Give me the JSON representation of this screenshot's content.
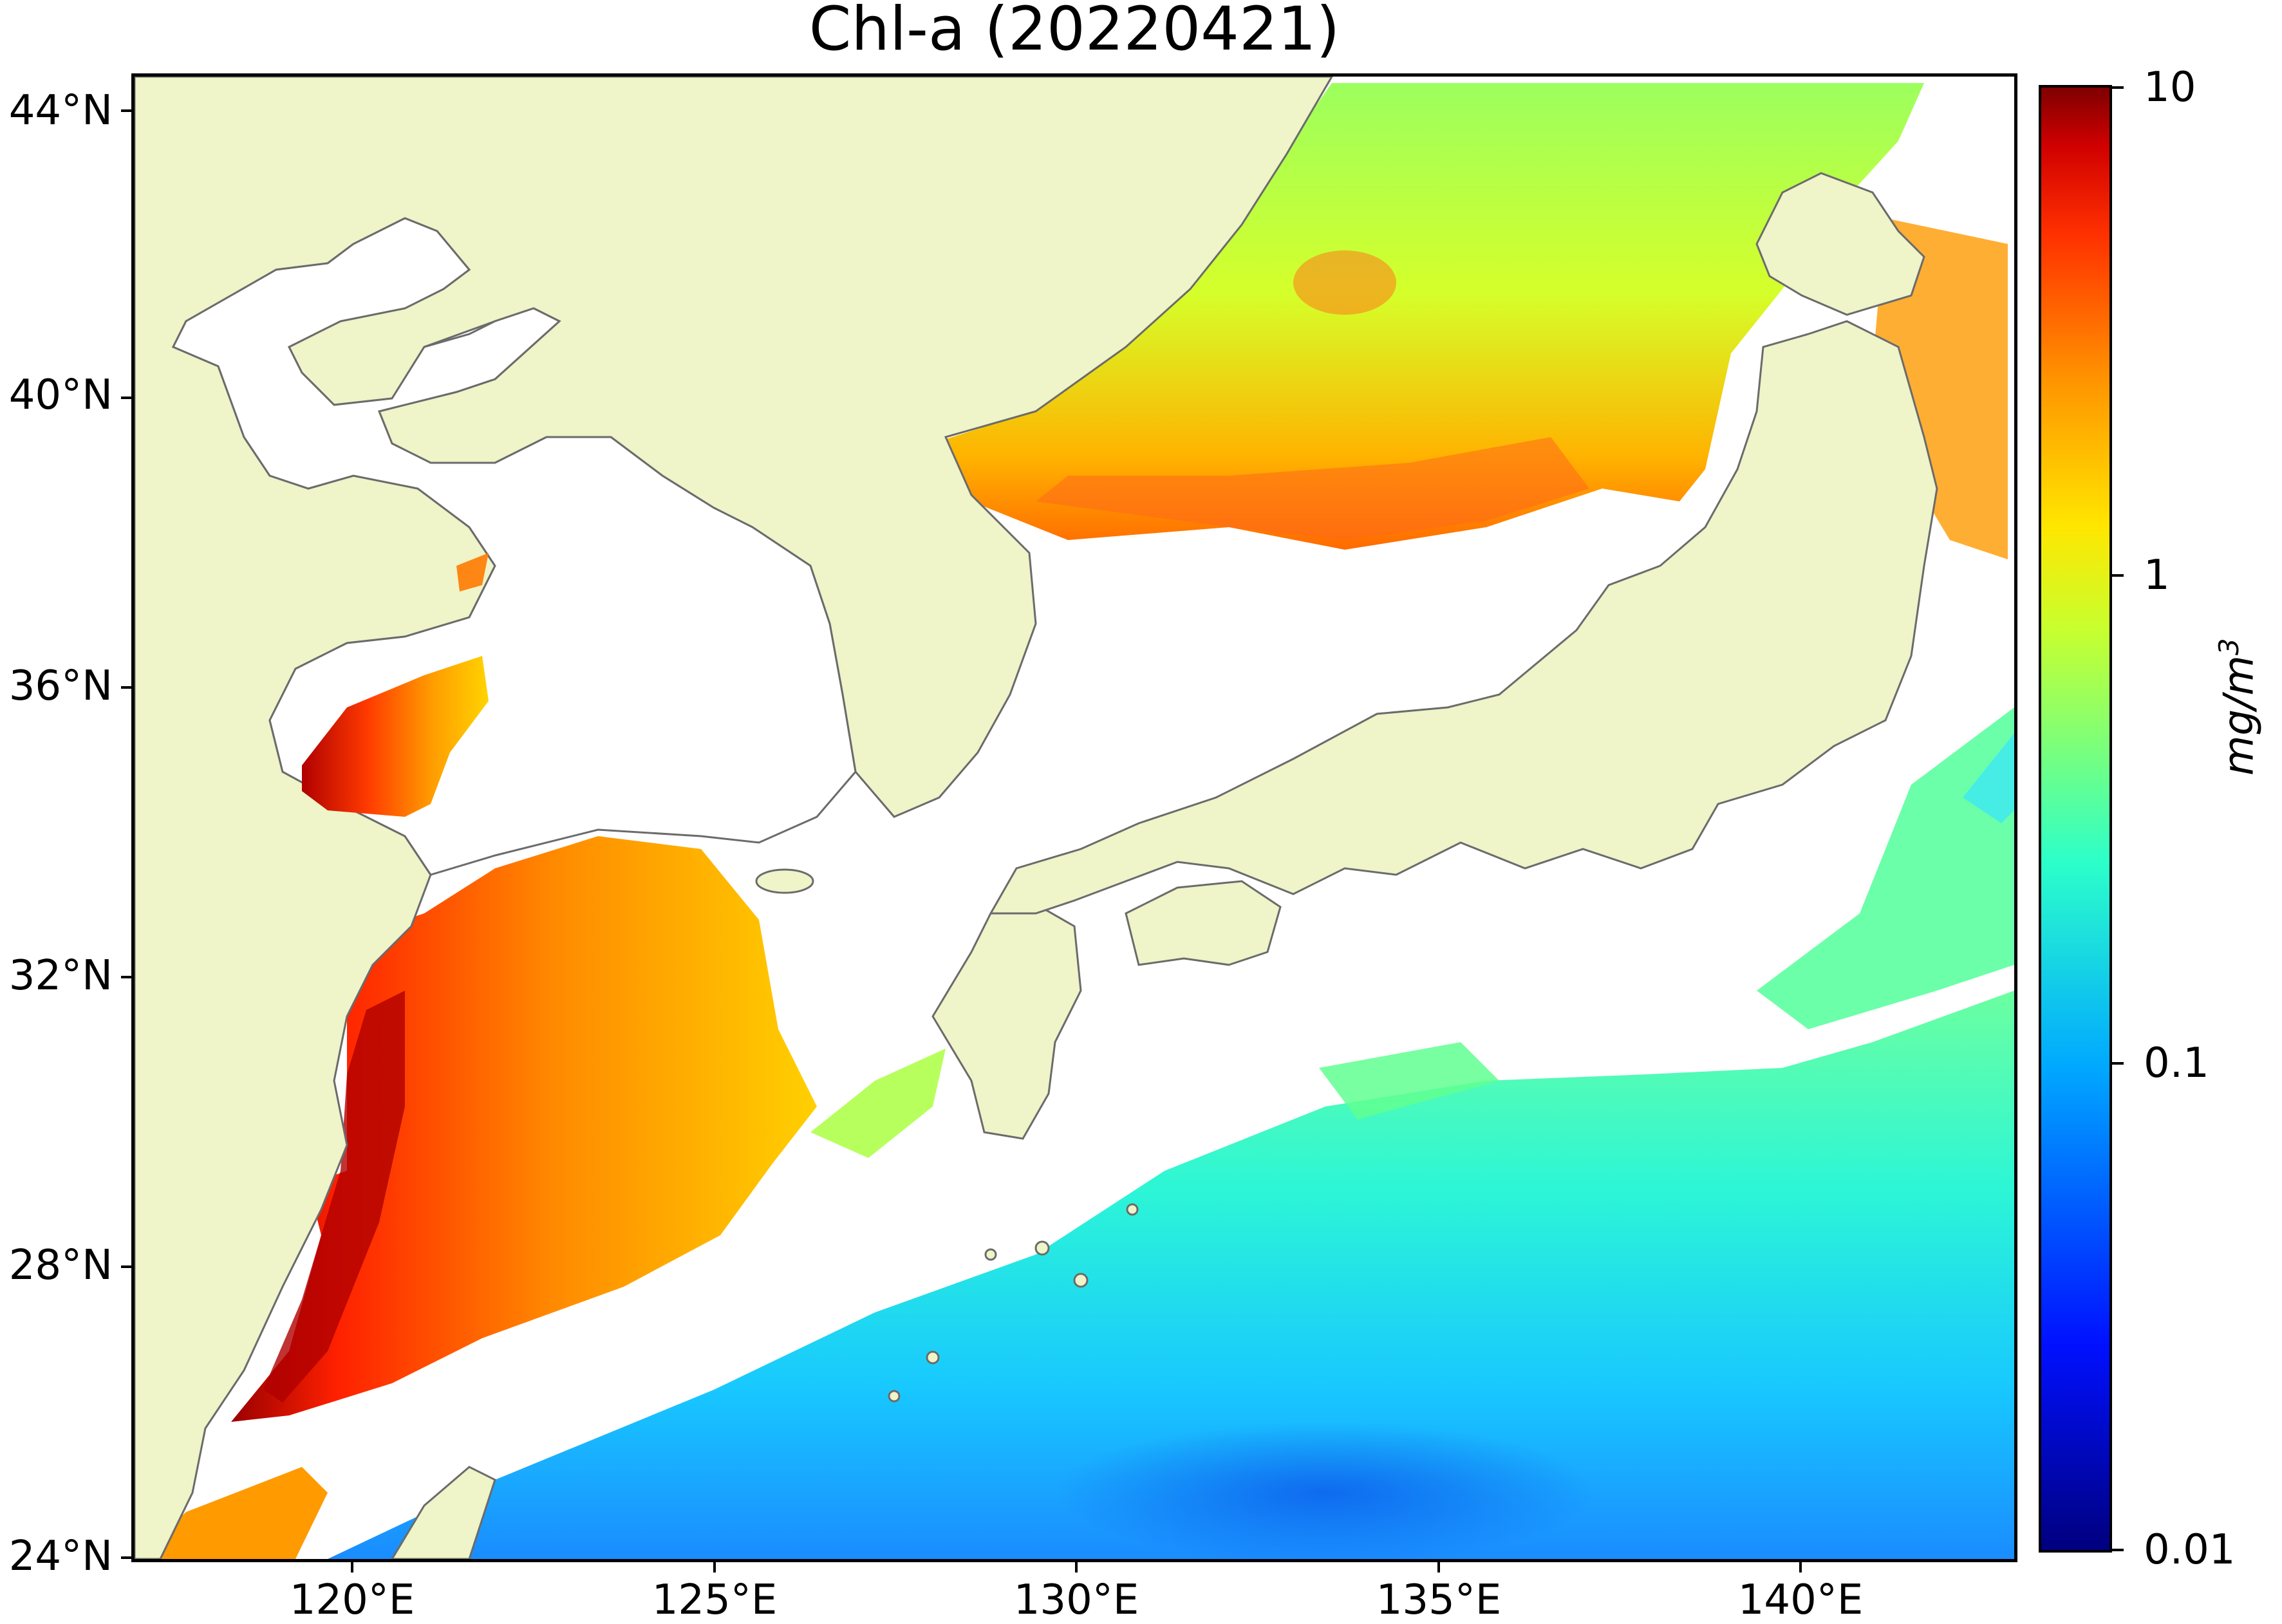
{
  "title": "Chl-a (20220421)",
  "map": {
    "extent": {
      "lon_min": 117,
      "lon_max": 143,
      "lat_min": 24,
      "lat_max": 44.5
    },
    "colors": {
      "land": "#eff4c9",
      "coastline": "#6b6b6b",
      "no_data": "#ffffff",
      "frame": "#000000"
    },
    "lat_ticks": [
      {
        "value": 44,
        "label": "44°N"
      },
      {
        "value": 40,
        "label": "40°N"
      },
      {
        "value": 36,
        "label": "36°N"
      },
      {
        "value": 32,
        "label": "32°N"
      },
      {
        "value": 28,
        "label": "28°N"
      },
      {
        "value": 24,
        "label": "24°N"
      }
    ],
    "lon_ticks": [
      {
        "value": 120,
        "label": "120°E"
      },
      {
        "value": 125,
        "label": "125°E"
      },
      {
        "value": 130,
        "label": "130°E"
      },
      {
        "value": 135,
        "label": "135°E"
      },
      {
        "value": 140,
        "label": "140°E"
      }
    ]
  },
  "colorbar": {
    "scale": "log",
    "range": [
      0.01,
      10
    ],
    "ticks": [
      "10",
      "1",
      "0.1",
      "0.01"
    ],
    "unit_base": "mg/m",
    "unit_exp": "3",
    "colormap": "jet"
  }
}
